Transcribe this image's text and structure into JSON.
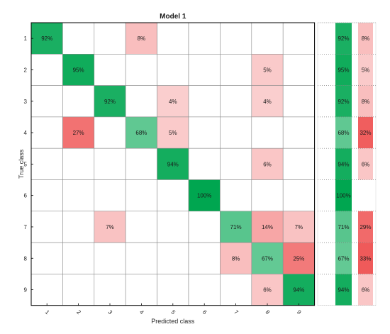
{
  "chart_data": {
    "type": "heatmap",
    "title": "Model 1",
    "xlabel": "Predicted class",
    "ylabel": "True class",
    "classes": [
      "1",
      "2",
      "3",
      "4",
      "5",
      "6",
      "7",
      "8",
      "9"
    ],
    "matrix_percent": [
      [
        92,
        null,
        null,
        8,
        null,
        null,
        null,
        null,
        null
      ],
      [
        null,
        95,
        null,
        null,
        null,
        null,
        null,
        5,
        null
      ],
      [
        null,
        null,
        92,
        null,
        4,
        null,
        null,
        4,
        null
      ],
      [
        null,
        27,
        null,
        68,
        5,
        null,
        null,
        null,
        null
      ],
      [
        null,
        null,
        null,
        null,
        94,
        null,
        null,
        6,
        null
      ],
      [
        null,
        null,
        null,
        null,
        null,
        100,
        null,
        null,
        null
      ],
      [
        null,
        null,
        7,
        null,
        null,
        null,
        71,
        14,
        7
      ],
      [
        null,
        null,
        null,
        null,
        null,
        null,
        8,
        67,
        25
      ],
      [
        null,
        null,
        null,
        null,
        null,
        null,
        null,
        6,
        94
      ]
    ],
    "row_summary": {
      "correct_percent": [
        92,
        95,
        92,
        68,
        94,
        100,
        71,
        67,
        94
      ],
      "incorrect_percent": [
        8,
        5,
        8,
        32,
        6,
        null,
        29,
        33,
        6
      ]
    },
    "colors": {
      "correct": "#00a650",
      "incorrect": "#ee4a4a",
      "background": "#ffffff",
      "border": "#000000"
    }
  }
}
